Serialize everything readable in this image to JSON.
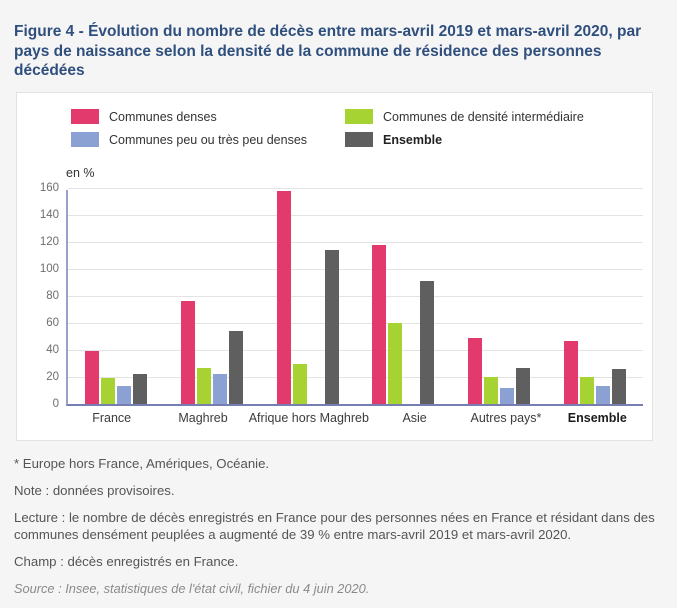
{
  "figure": {
    "title": "Figure 4 - Évolution du nombre de décès entre mars-avril 2019 et mars-avril 2020, par pays de naissance selon la densité de la commune de résidence des personnes décédées",
    "unit_label": "en %"
  },
  "legend": {
    "items": [
      {
        "label": "Communes denses",
        "color": "#e23a6d",
        "bold": false
      },
      {
        "label": "Communes peu ou très peu denses",
        "color": "#8ba1d4",
        "bold": false
      },
      {
        "label": "Communes de densité intermédiaire",
        "color": "#a6d232",
        "bold": false
      },
      {
        "label": "Ensemble",
        "color": "#5f5f5f",
        "bold": true
      }
    ]
  },
  "chart_data": {
    "type": "bar",
    "title": "Évolution du nombre de décès entre mars-avril 2019 et mars-avril 2020, par pays de naissance selon la densité de la commune de résidence des personnes décédées",
    "ylabel": "en %",
    "xlabel": "",
    "categories": [
      "France",
      "Maghreb",
      "Afrique hors Maghreb",
      "Asie",
      "Autres pays*",
      "Ensemble"
    ],
    "bold_categories": [
      "Ensemble"
    ],
    "series": [
      {
        "name": "Communes denses",
        "color": "#e23a6d",
        "values": [
          39,
          76,
          158,
          118,
          49,
          47
        ]
      },
      {
        "name": "Communes de densité intermédiaire",
        "color": "#a6d232",
        "values": [
          19,
          27,
          30,
          60,
          20,
          20
        ]
      },
      {
        "name": "Communes peu ou très peu denses",
        "color": "#8ba1d4",
        "values": [
          13,
          22,
          null,
          null,
          12,
          13
        ]
      },
      {
        "name": "Ensemble",
        "color": "#5f5f5f",
        "values": [
          22,
          54,
          114,
          91,
          27,
          26
        ]
      }
    ],
    "ylim": [
      0,
      160
    ],
    "yticks": [
      0,
      20,
      40,
      60,
      80,
      100,
      120,
      140,
      160
    ],
    "grid": true,
    "legend_position": "top"
  },
  "notes": {
    "footnote": "* Europe hors France, Amériques, Océanie.",
    "note": "Note : données provisoires.",
    "lecture": "Lecture : le nombre de décès enregistrés en France pour des personnes nées en France et résidant dans des communes densément peuplées a augmenté de 39 % entre mars-avril 2019 et mars-avril 2020.",
    "champ": "Champ : décès enregistrés en France.",
    "source": "Source : Insee, statistiques de l'état civil, fichier du 4 juin 2020."
  }
}
